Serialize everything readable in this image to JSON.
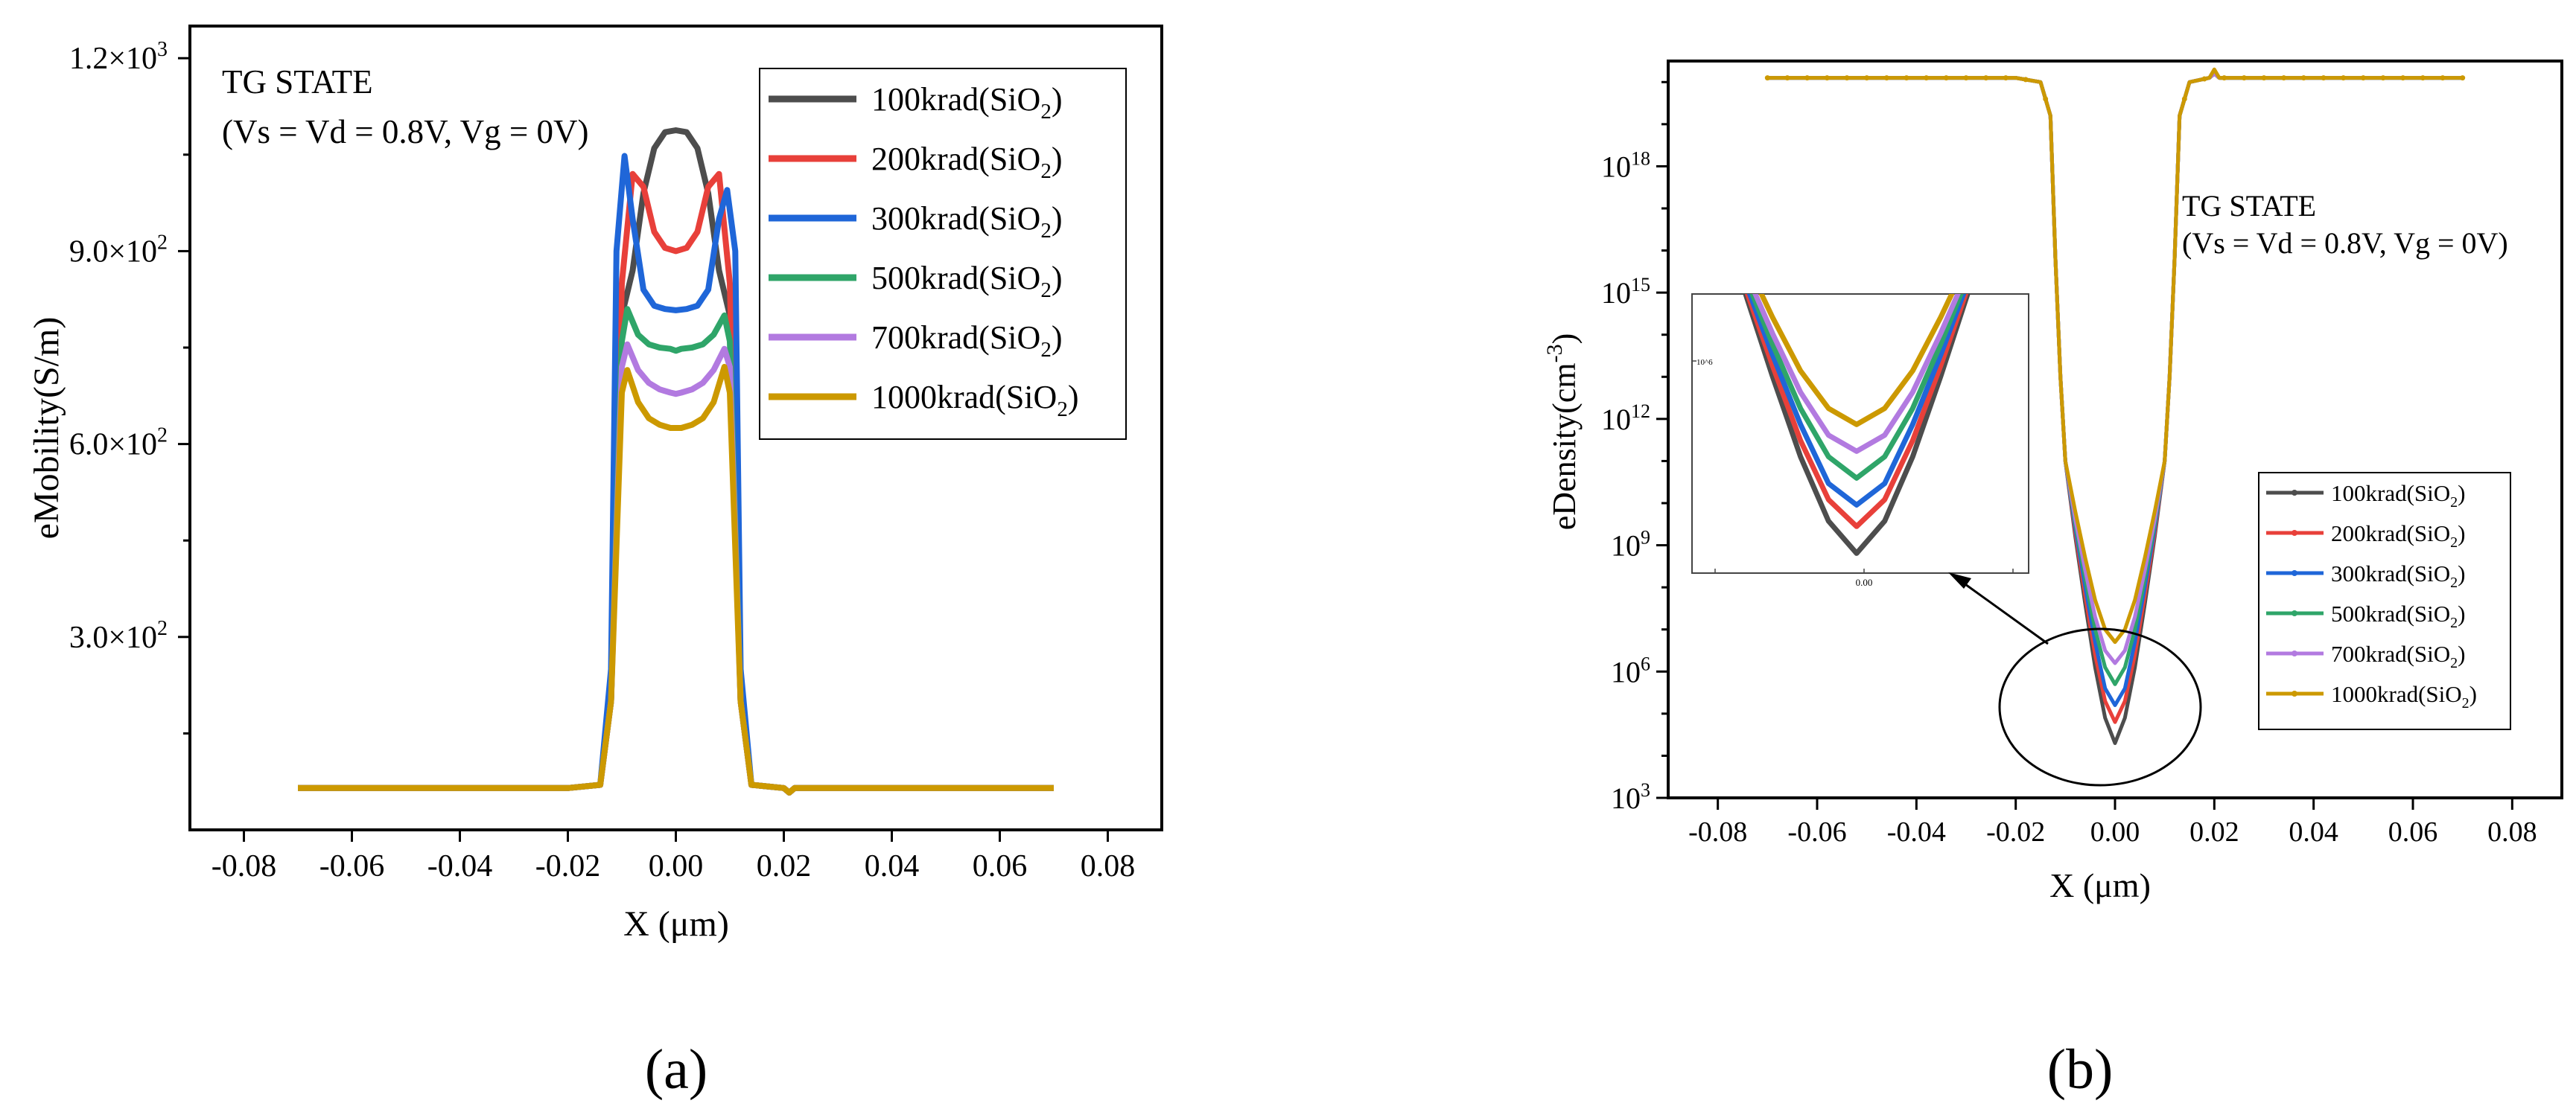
{
  "colors": {
    "series": [
      "#4d4d4d",
      "#e8403a",
      "#1f66d8",
      "#2fa569",
      "#b27ae0",
      "#cc9900"
    ],
    "axis": "#000000"
  },
  "chart_data": [
    {
      "type": "line",
      "panel_label": "(a)",
      "annotation": [
        "TG STATE",
        "(Vs = Vd = 0.8V, Vg = 0V)"
      ],
      "xlabel": "X (μm)",
      "ylabel": "eMobility(S/m)",
      "xlim": [
        -0.09,
        0.09
      ],
      "ylim": [
        0,
        1250
      ],
      "xticks": [
        -0.08,
        -0.06,
        -0.04,
        -0.02,
        0.0,
        0.02,
        0.04,
        0.06,
        0.08
      ],
      "xtick_labels": [
        "-0.08",
        "-0.06",
        "-0.04",
        "-0.02",
        "0.00",
        "0.02",
        "0.04",
        "0.06",
        "0.08"
      ],
      "yticks": [
        300,
        600,
        900,
        1200
      ],
      "ytick_labels": [
        [
          "3.0×10",
          "2"
        ],
        [
          "6.0×10",
          "2"
        ],
        [
          "9.0×10",
          "2"
        ],
        [
          "1.2×10",
          "3"
        ]
      ],
      "legend_position": "top-right",
      "series": [
        {
          "name": "100krad(SiO2)",
          "legend_parts": [
            "100krad(SiO",
            "2",
            ")"
          ],
          "x": [
            -0.07,
            -0.02,
            -0.014,
            -0.012,
            -0.01,
            -0.008,
            -0.006,
            -0.004,
            -0.002,
            0.0,
            0.002,
            0.004,
            0.006,
            0.008,
            0.01,
            0.012,
            0.014,
            0.02,
            0.021,
            0.022,
            0.07
          ],
          "y": [
            65,
            65,
            70,
            200,
            800,
            870,
            990,
            1060,
            1085,
            1088,
            1085,
            1060,
            990,
            870,
            800,
            200,
            70,
            65,
            58,
            65,
            65
          ]
        },
        {
          "name": "200krad(SiO2)",
          "legend_parts": [
            "200krad(SiO",
            "2",
            ")"
          ],
          "x": [
            -0.07,
            -0.02,
            -0.014,
            -0.012,
            -0.01,
            -0.008,
            -0.006,
            -0.004,
            -0.002,
            0.0,
            0.002,
            0.004,
            0.006,
            0.008,
            0.01,
            0.012,
            0.014,
            0.02,
            0.021,
            0.022,
            0.07
          ],
          "y": [
            65,
            65,
            70,
            200,
            850,
            1020,
            1000,
            930,
            905,
            900,
            905,
            930,
            1000,
            1020,
            850,
            200,
            70,
            65,
            58,
            65,
            65
          ]
        },
        {
          "name": "300krad(SiO2)",
          "legend_parts": [
            "300krad(SiO",
            "2",
            ")"
          ],
          "x": [
            -0.07,
            -0.02,
            -0.014,
            -0.012,
            -0.011,
            -0.0095,
            -0.008,
            -0.006,
            -0.004,
            -0.002,
            0.0,
            0.002,
            0.004,
            0.006,
            0.008,
            0.0095,
            0.011,
            0.012,
            0.014,
            0.02,
            0.021,
            0.022,
            0.07
          ],
          "y": [
            65,
            65,
            70,
            250,
            900,
            1048,
            950,
            840,
            815,
            810,
            808,
            810,
            815,
            840,
            950,
            995,
            900,
            250,
            70,
            65,
            58,
            65,
            65
          ]
        },
        {
          "name": "500krad(SiO2)",
          "legend_parts": [
            "500krad(SiO",
            "2",
            ")"
          ],
          "x": [
            -0.07,
            -0.02,
            -0.014,
            -0.012,
            -0.01,
            -0.009,
            -0.007,
            -0.005,
            -0.003,
            -0.001,
            0.0,
            0.001,
            0.003,
            0.005,
            0.007,
            0.009,
            0.01,
            0.012,
            0.014,
            0.02,
            0.021,
            0.022,
            0.07
          ],
          "y": [
            65,
            65,
            70,
            200,
            760,
            810,
            770,
            755,
            750,
            748,
            745,
            748,
            750,
            755,
            770,
            800,
            760,
            200,
            70,
            65,
            58,
            65,
            65
          ]
        },
        {
          "name": "700krad(SiO2)",
          "legend_parts": [
            "700krad(SiO",
            "2",
            ")"
          ],
          "x": [
            -0.07,
            -0.02,
            -0.014,
            -0.012,
            -0.01,
            -0.009,
            -0.007,
            -0.005,
            -0.003,
            -0.001,
            0.0,
            0.001,
            0.003,
            0.005,
            0.007,
            0.009,
            0.01,
            0.012,
            0.014,
            0.02,
            0.021,
            0.022,
            0.07
          ],
          "y": [
            65,
            65,
            70,
            200,
            720,
            755,
            715,
            695,
            685,
            680,
            678,
            680,
            685,
            695,
            715,
            748,
            720,
            200,
            70,
            65,
            58,
            65,
            65
          ]
        },
        {
          "name": "1000krad(SiO2)",
          "legend_parts": [
            "1000krad(SiO",
            "2",
            ")"
          ],
          "x": [
            -0.07,
            -0.02,
            -0.014,
            -0.012,
            -0.01,
            -0.009,
            -0.007,
            -0.005,
            -0.003,
            -0.001,
            0.0,
            0.001,
            0.003,
            0.005,
            0.007,
            0.009,
            0.01,
            0.012,
            0.014,
            0.02,
            0.021,
            0.022,
            0.07
          ],
          "y": [
            65,
            65,
            70,
            200,
            680,
            715,
            665,
            640,
            630,
            625,
            625,
            625,
            630,
            640,
            665,
            720,
            680,
            200,
            70,
            65,
            58,
            65,
            65
          ]
        }
      ]
    },
    {
      "type": "line",
      "panel_label": "(b)",
      "annotation": [
        "TG STATE",
        "(Vs = Vd = 0.8V, Vg = 0V)"
      ],
      "xlabel": "X (μm)",
      "ylabel_parts": [
        "eDensity(cm",
        "-3",
        ")"
      ],
      "yscale": "log",
      "xlim": [
        -0.09,
        0.09
      ],
      "ylim_log10": [
        3,
        20.5
      ],
      "xticks": [
        -0.08,
        -0.06,
        -0.04,
        -0.02,
        0.0,
        0.02,
        0.04,
        0.06,
        0.08
      ],
      "xtick_labels": [
        "-0.08",
        "-0.06",
        "-0.04",
        "-0.02",
        "0.00",
        "0.02",
        "0.04",
        "0.06",
        "0.08"
      ],
      "yticks_log10": [
        3,
        6,
        9,
        12,
        15,
        18
      ],
      "ytick_labels": [
        [
          "10",
          "3"
        ],
        [
          "10",
          "6"
        ],
        [
          "10",
          "9"
        ],
        [
          "10",
          "12"
        ],
        [
          "10",
          "15"
        ],
        [
          "10",
          "18"
        ]
      ],
      "legend_position": "bottom-right",
      "inset": {
        "xtick_label": "0.00",
        "ytick_label": "10^6"
      },
      "x": [
        -0.07,
        -0.02,
        -0.015,
        -0.013,
        -0.012,
        -0.011,
        -0.01,
        -0.008,
        -0.006,
        -0.004,
        -0.002,
        0.0,
        0.002,
        0.004,
        0.006,
        0.008,
        0.01,
        0.011,
        0.012,
        0.013,
        0.015,
        0.019,
        0.02,
        0.021,
        0.07
      ],
      "series": [
        {
          "name": "100krad(SiO2)",
          "legend_parts": [
            "100krad(SiO",
            "2",
            ")"
          ],
          "y_log10": [
            20.1,
            20.1,
            20.0,
            19.2,
            15.8,
            13.0,
            11.0,
            9.2,
            7.6,
            6.1,
            4.9,
            4.3,
            4.9,
            6.1,
            7.6,
            9.2,
            11.0,
            13.0,
            15.8,
            19.2,
            20.0,
            20.1,
            20.2,
            20.1,
            20.1
          ]
        },
        {
          "name": "200krad(SiO2)",
          "legend_parts": [
            "200krad(SiO",
            "2",
            ")"
          ],
          "y_log10": [
            20.1,
            20.1,
            20.0,
            19.2,
            15.8,
            13.0,
            11.0,
            9.3,
            7.8,
            6.4,
            5.3,
            4.8,
            5.3,
            6.4,
            7.8,
            9.3,
            11.0,
            13.0,
            15.8,
            19.2,
            20.0,
            20.1,
            20.2,
            20.1,
            20.1
          ]
        },
        {
          "name": "300krad(SiO2)",
          "legend_parts": [
            "300krad(SiO",
            "2",
            ")"
          ],
          "y_log10": [
            20.1,
            20.1,
            20.0,
            19.2,
            15.8,
            13.0,
            11.0,
            9.4,
            8.0,
            6.7,
            5.6,
            5.2,
            5.6,
            6.7,
            8.0,
            9.4,
            11.0,
            13.0,
            15.8,
            19.2,
            20.0,
            20.1,
            20.2,
            20.1,
            20.1
          ]
        },
        {
          "name": "500krad(SiO2)",
          "legend_parts": [
            "500krad(SiO",
            "2",
            ")"
          ],
          "y_log10": [
            20.1,
            20.1,
            20.0,
            19.2,
            15.8,
            13.0,
            11.0,
            9.5,
            8.2,
            7.0,
            6.1,
            5.7,
            6.1,
            7.0,
            8.2,
            9.5,
            11.0,
            13.0,
            15.8,
            19.2,
            20.0,
            20.1,
            20.2,
            20.1,
            20.1
          ]
        },
        {
          "name": "700krad(SiO2)",
          "legend_parts": [
            "700krad(SiO",
            "2",
            ")"
          ],
          "y_log10": [
            20.1,
            20.1,
            20.0,
            19.2,
            15.8,
            13.0,
            11.0,
            9.6,
            8.4,
            7.3,
            6.5,
            6.2,
            6.5,
            7.3,
            8.4,
            9.6,
            11.0,
            13.0,
            15.8,
            19.2,
            20.0,
            20.1,
            20.2,
            20.1,
            20.1
          ]
        },
        {
          "name": "1000krad(SiO2)",
          "legend_parts": [
            "1000krad(SiO",
            "2",
            ")"
          ],
          "y_log10": [
            20.1,
            20.1,
            20.0,
            19.2,
            15.8,
            13.0,
            11.0,
            9.8,
            8.7,
            7.7,
            7.0,
            6.7,
            7.0,
            7.7,
            8.7,
            9.8,
            11.0,
            13.0,
            15.8,
            19.2,
            20.0,
            20.1,
            20.3,
            20.1,
            20.1
          ]
        }
      ]
    }
  ]
}
